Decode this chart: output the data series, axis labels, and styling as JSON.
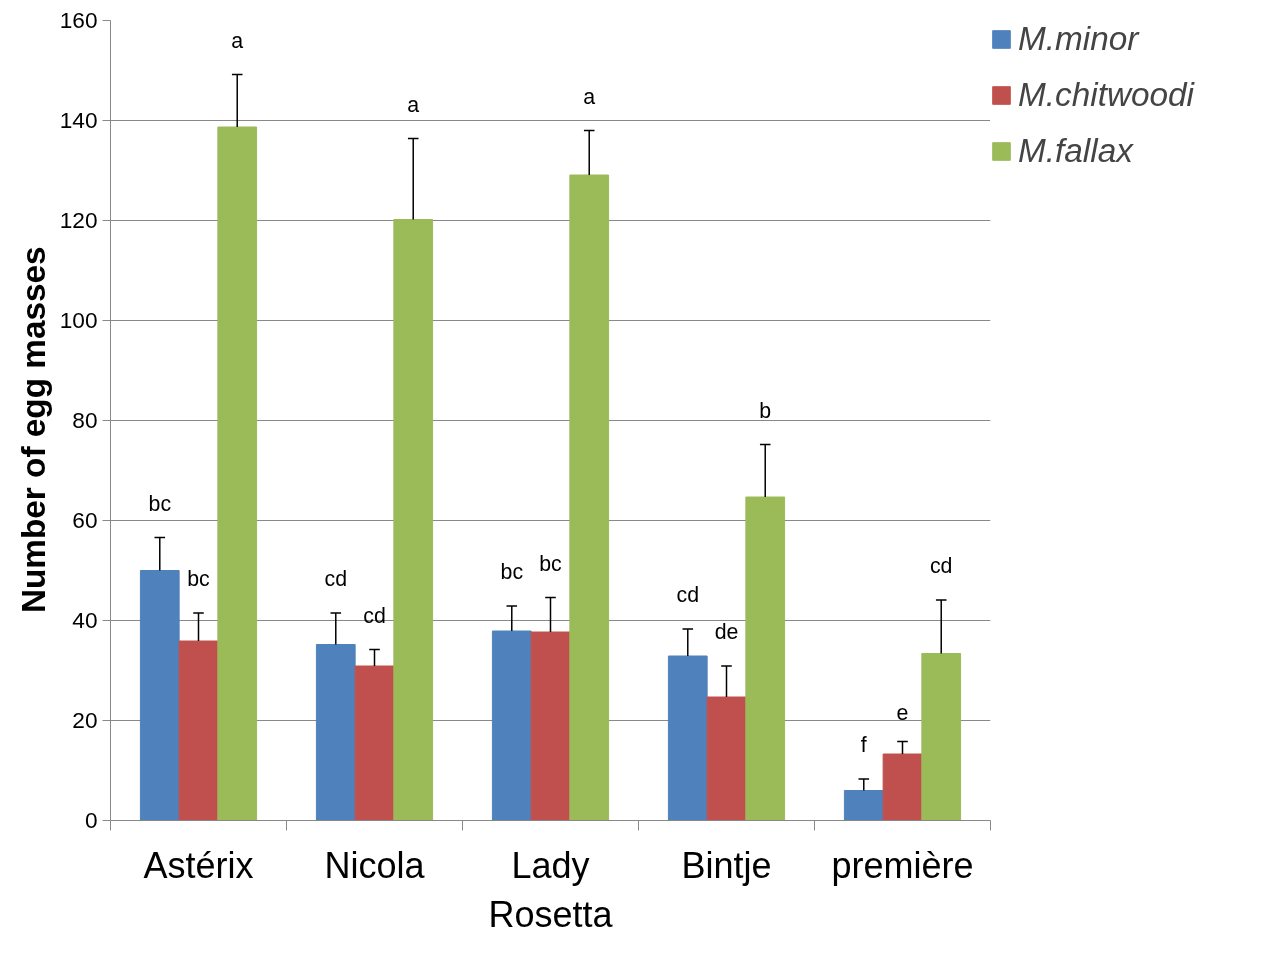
{
  "chart_data": {
    "type": "bar",
    "ylabel": "Number  of  egg masses",
    "categories": [
      "Astérix",
      "Nicola",
      "Lady Rosetta",
      "Bintje",
      "première"
    ],
    "series": [
      {
        "name": "M.minor",
        "color": "#4f81bd",
        "values": [
          50.0,
          35.2,
          37.9,
          32.9,
          6.0
        ],
        "errors": [
          [
            50.0,
            56.6
          ],
          [
            35.2,
            41.5
          ],
          [
            37.9,
            42.9
          ],
          [
            32.9,
            38.3
          ],
          [
            6.0,
            8.3
          ]
        ]
      },
      {
        "name": "M.chitwoodi",
        "color": "#c0504d",
        "values": [
          35.9,
          30.9,
          37.7,
          24.7,
          13.3
        ],
        "errors": [
          [
            35.9,
            41.5
          ],
          [
            30.9,
            34.2
          ],
          [
            37.7,
            44.6
          ],
          [
            24.7,
            30.9
          ],
          [
            13.3,
            15.8
          ]
        ]
      },
      {
        "name": "M.fallax",
        "color": "#9bbb59",
        "values": [
          138.7,
          120.2,
          129.1,
          64.7,
          33.4
        ],
        "errors": [
          [
            138.7,
            149.2
          ],
          [
            120.2,
            136.4
          ],
          [
            129.1,
            138.0
          ],
          [
            64.7,
            75.2
          ],
          [
            33.4,
            44.1
          ]
        ]
      }
    ],
    "ylim": [
      0,
      160
    ],
    "yticks": [
      0,
      20,
      40,
      60,
      80,
      100,
      120,
      140,
      160
    ],
    "grid": "y",
    "legend": "right",
    "annotations": [
      "bc",
      "bc",
      "a",
      "cd",
      "cd",
      "a",
      "bc",
      "bc",
      "a",
      "cd",
      "de",
      "b",
      "f",
      "e",
      "cd"
    ]
  }
}
